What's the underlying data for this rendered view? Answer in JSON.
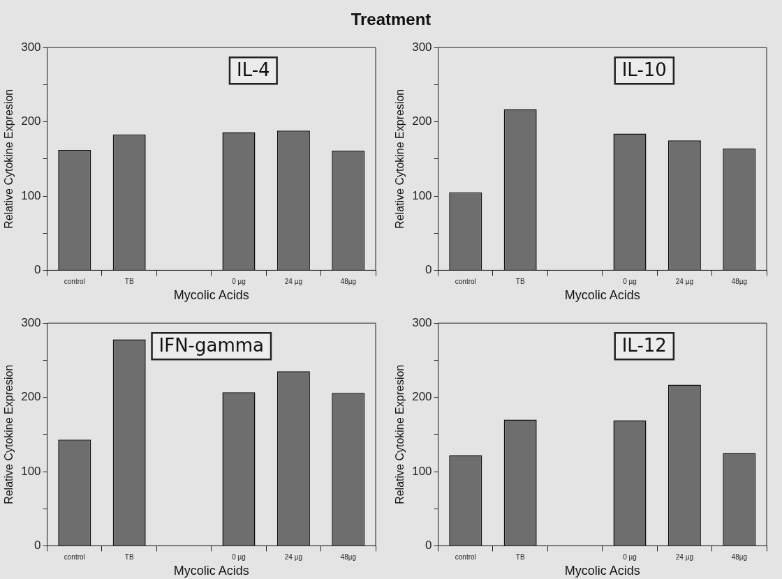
{
  "chart_data": [
    {
      "type": "bar",
      "title": "IL-4",
      "annotations": [
        "Treatment"
      ],
      "xlabel": "Mycolic Acids",
      "ylabel": "Relative Cytokine Expresion",
      "categories": [
        "control",
        "TB",
        null,
        "0 µg",
        "24 µg",
        "48µg"
      ],
      "values": [
        162,
        183,
        null,
        186,
        188,
        161
      ],
      "color": "#6e6e6e",
      "ylim": [
        0,
        300
      ],
      "yticks": [
        0,
        {
          "value": 50,
          "label": null
        },
        100,
        {
          "value": 150,
          "label": null
        },
        200,
        {
          "value": 250,
          "label": null
        },
        300
      ],
      "grid": false
    },
    {
      "type": "bar",
      "title": "IL-10",
      "xlabel": "Mycolic Acids",
      "ylabel": "Relative Cytokine Expresion",
      "categories": [
        "control",
        "TB",
        null,
        "0 µg",
        "24 µg",
        "48µg"
      ],
      "values": [
        105,
        217,
        null,
        184,
        175,
        164
      ],
      "color": "#6e6e6e",
      "ylim": [
        0,
        300
      ],
      "yticks": [
        0,
        {
          "value": 50,
          "label": null
        },
        100,
        {
          "value": 150,
          "label": null
        },
        200,
        {
          "value": 250,
          "label": null
        },
        300
      ],
      "grid": false
    },
    {
      "type": "bar",
      "title": "IFN-gamma",
      "xlabel": "Mycolic Acids",
      "ylabel": "Relative Cytokine Expresion",
      "categories": [
        "control",
        "TB",
        null,
        "0 µg",
        "24 µg",
        "48µg"
      ],
      "values": [
        143,
        278,
        null,
        207,
        235,
        206
      ],
      "color": "#6e6e6e",
      "ylim": [
        0,
        300
      ],
      "yticks": [
        0,
        {
          "value": 50,
          "label": null
        },
        100,
        {
          "value": 150,
          "label": null
        },
        200,
        {
          "value": 250,
          "label": null
        },
        300
      ],
      "grid": false
    },
    {
      "type": "bar",
      "title": "IL-12",
      "xlabel": "Mycolic Acids",
      "ylabel": "Relative Cytokine Expresion",
      "categories": [
        "control",
        "TB",
        null,
        "0 µg",
        "24 µg",
        "48µg"
      ],
      "values": [
        122,
        170,
        null,
        169,
        217,
        125
      ],
      "color": "#6e6e6e",
      "ylim": [
        0,
        300
      ],
      "yticks": [
        0,
        {
          "value": 50,
          "label": null
        },
        100,
        {
          "value": 150,
          "label": null
        },
        200,
        {
          "value": 250,
          "label": null
        },
        300
      ],
      "grid": false
    }
  ]
}
